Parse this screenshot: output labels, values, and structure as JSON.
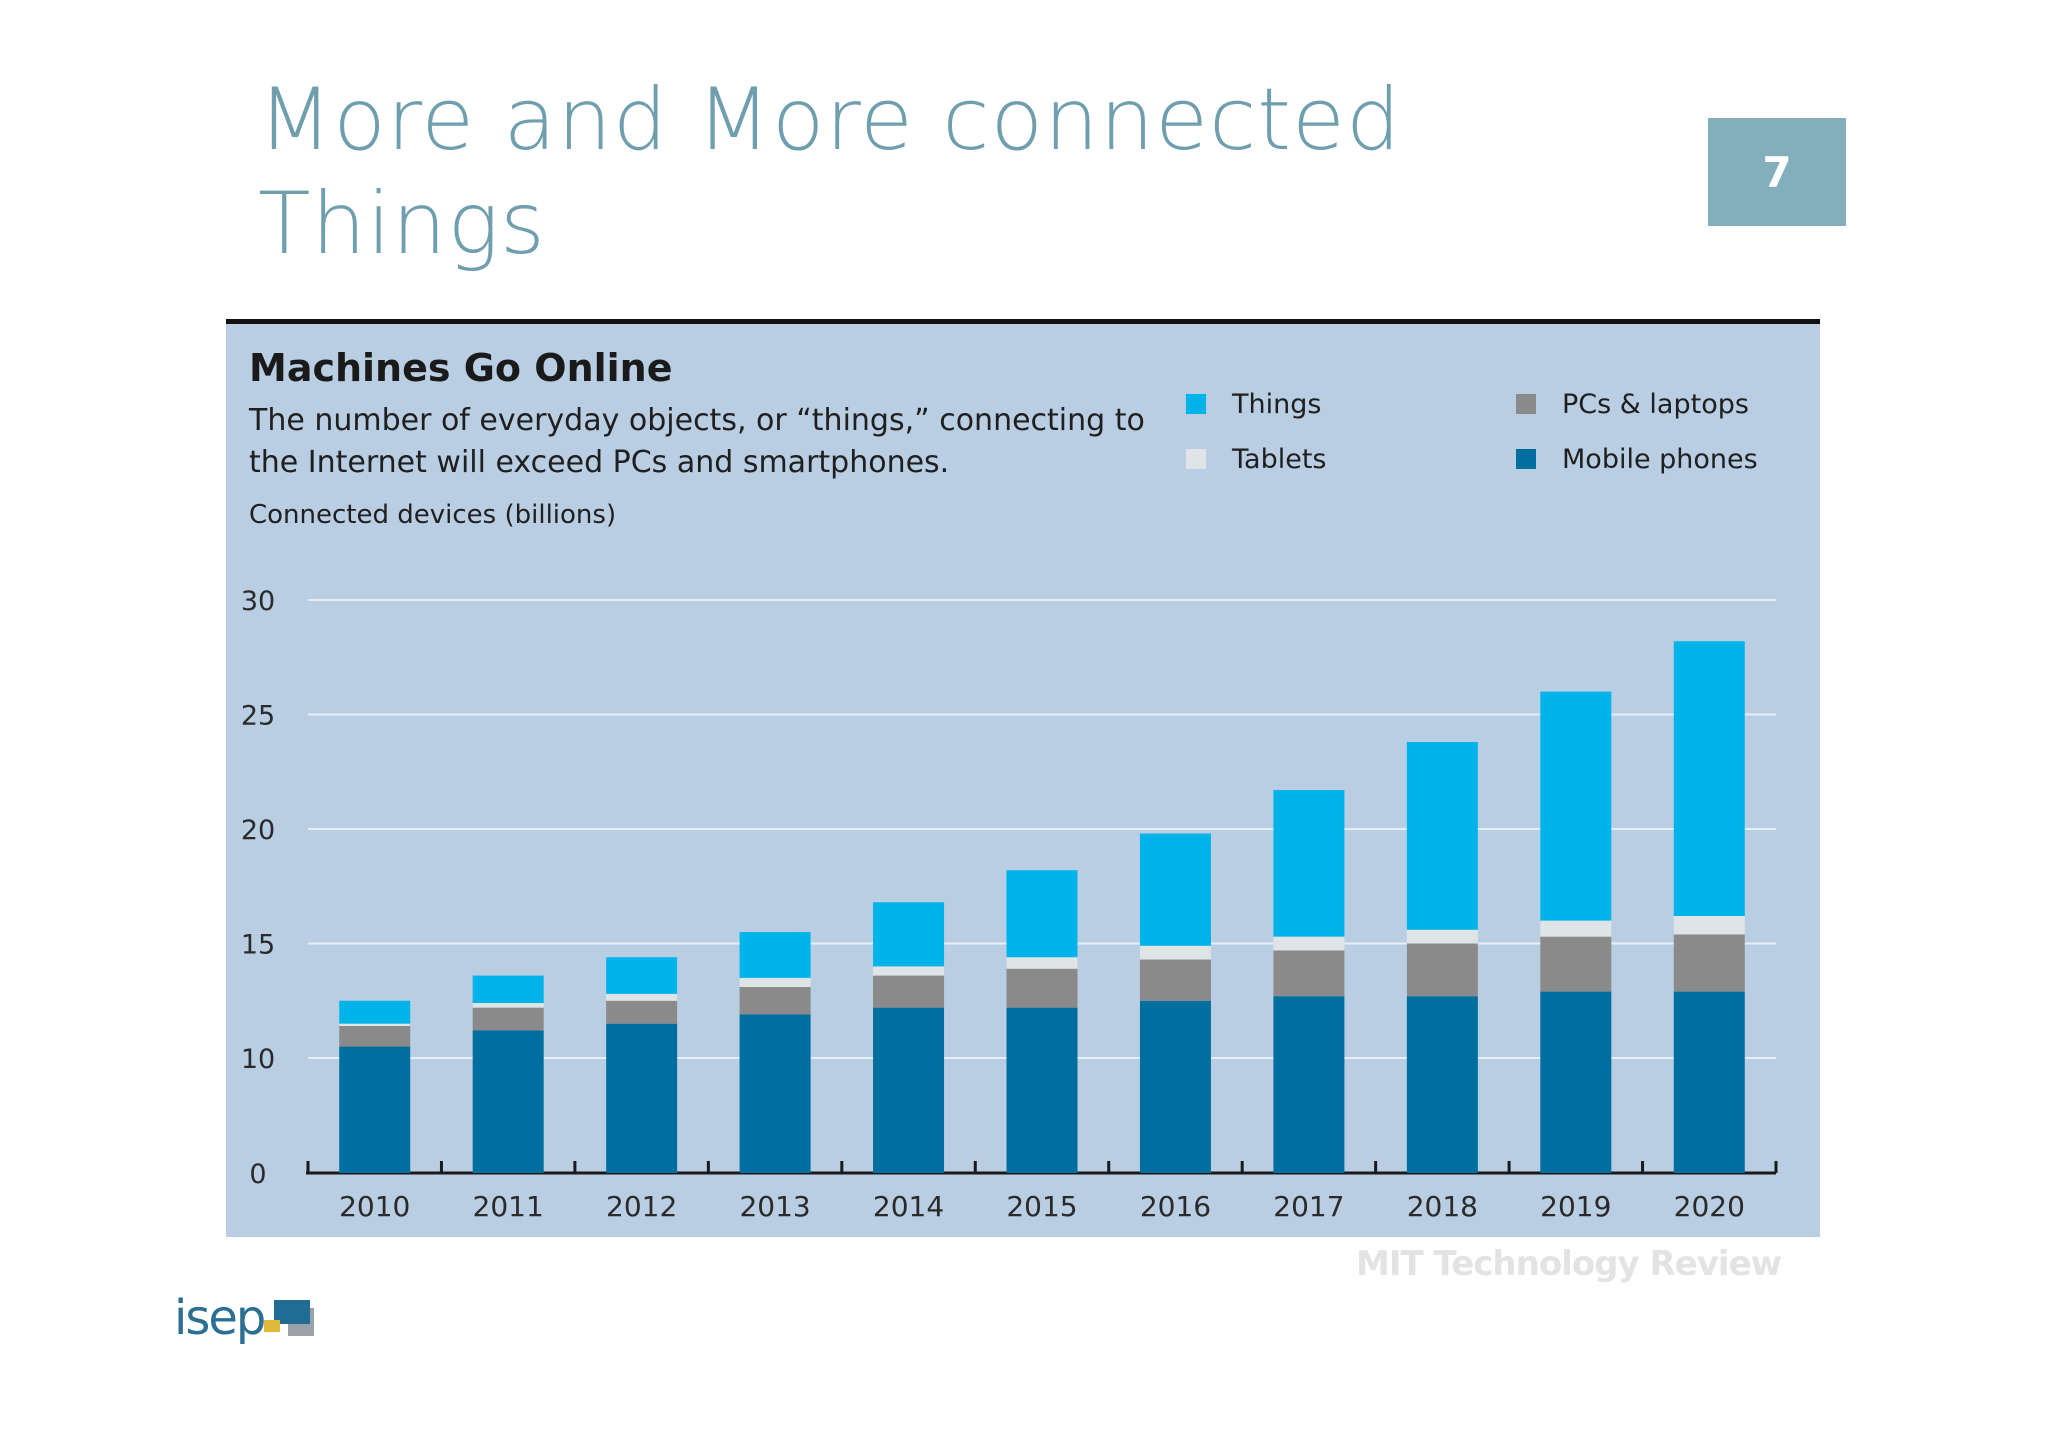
{
  "slide": {
    "title": "More and More connected Things",
    "page_number": "7"
  },
  "source": "MIT Technology Review",
  "logo": {
    "text": "isep"
  },
  "colors": {
    "things": "#00b4ea",
    "tablets": "#dfe5e6",
    "pcs": "#8a8a8a",
    "mobile": "#006fa0",
    "title": "#6f9eae",
    "page_box": "#83aebc",
    "panel": "#b9cde3"
  },
  "chart_data": {
    "type": "bar",
    "stacked": true,
    "title": "Machines Go Online",
    "subtitle": "The number of everyday objects, or “things,” connecting to the Internet will exceed PCs and smartphones.",
    "ylabel": "Connected devices (billions)",
    "xlabel": "",
    "yticks": [
      0,
      10,
      15,
      20,
      25,
      30
    ],
    "ylim": [
      0,
      30
    ],
    "grid": true,
    "legend_position": "top-right",
    "categories": [
      "2010",
      "2011",
      "2012",
      "2013",
      "2014",
      "2015",
      "2016",
      "2017",
      "2018",
      "2019",
      "2020"
    ],
    "series": [
      {
        "name": "Mobile phones",
        "color": "#006fa0",
        "values": [
          10.5,
          11.2,
          11.5,
          11.9,
          12.2,
          12.2,
          12.5,
          12.7,
          12.7,
          12.9,
          12.9
        ]
      },
      {
        "name": "PCs & laptops",
        "color": "#8a8a8a",
        "values": [
          0.9,
          1.0,
          1.0,
          1.2,
          1.4,
          1.7,
          1.8,
          2.0,
          2.3,
          2.4,
          2.5
        ]
      },
      {
        "name": "Tablets",
        "color": "#dfe5e6",
        "values": [
          0.1,
          0.2,
          0.3,
          0.4,
          0.4,
          0.5,
          0.6,
          0.6,
          0.6,
          0.7,
          0.8
        ]
      },
      {
        "name": "Things",
        "color": "#00b4ea",
        "values": [
          1.0,
          1.2,
          1.6,
          2.0,
          2.8,
          3.8,
          4.9,
          6.4,
          8.2,
          10.0,
          12.0
        ]
      }
    ],
    "legend": [
      {
        "name": "Things",
        "color": "#00b4ea"
      },
      {
        "name": "PCs & laptops",
        "color": "#8a8a8a"
      },
      {
        "name": "Tablets",
        "color": "#dfe5e6"
      },
      {
        "name": "Mobile phones",
        "color": "#006fa0"
      }
    ]
  }
}
